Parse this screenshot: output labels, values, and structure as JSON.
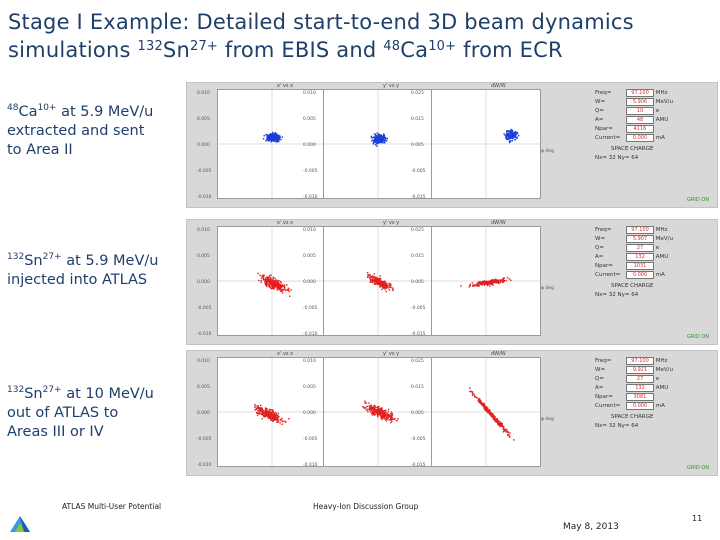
{
  "title": {
    "line1": "Stage I Example: Detailed start-to-end 3D beam dynamics",
    "line2_a": "simulations ",
    "sn_mass": "132",
    "sn_sym": "Sn",
    "sn_charge": "27+",
    "mid": " from EBIS and ",
    "ca_mass": "48",
    "ca_sym": "Ca",
    "ca_charge": "10+",
    "end": " from ECR"
  },
  "labels": [
    {
      "mass": "48",
      "sym": "Ca",
      "charge": "10+",
      "rest": " at 5.9 MeV/u",
      "line2": "extracted and sent",
      "line3": "to Area II"
    },
    {
      "mass": "132",
      "sym": "Sn",
      "charge": "27+",
      "rest": " at 5.9 MeV/u",
      "line2": "injected into ATLAS",
      "line3": ""
    },
    {
      "mass": "132",
      "sym": "Sn",
      "charge": "27+",
      "rest": " at 10 MeV/u",
      "line2": "out of ATLAS to",
      "line3": "Areas III or IV"
    }
  ],
  "panels": [
    {
      "color": "#1a3fd8",
      "fields": [
        {
          "k": "Freq=",
          "v": "97.100",
          "u": "MHz"
        },
        {
          "k": "W=",
          "v": "5.906",
          "u": "MeV/u"
        },
        {
          "k": "Q=",
          "v": "10",
          "u": "e"
        },
        {
          "k": "A=",
          "v": "48",
          "u": "AMU"
        },
        {
          "k": "Npar=",
          "v": "4116",
          "u": ""
        },
        {
          "k": "Current=",
          "v": "0.000",
          "u": "mA"
        }
      ],
      "space": "SPACE CHARGE",
      "nx": "Nx= 32   Ny= 64",
      "grid": "GRID ON",
      "plot_labels": [
        "x' vs x",
        "y' vs y",
        "dW/W"
      ],
      "yticks": [
        "0.010",
        "0.005",
        "0.000",
        "-0.005",
        "-0.010"
      ],
      "yticks3": [
        "0.025",
        "0.015",
        "0.005",
        "-0.005",
        "-0.015"
      ],
      "phase": "φ deg"
    },
    {
      "color": "#e02020",
      "fields": [
        {
          "k": "Freq=",
          "v": "97.100",
          "u": "MHz"
        },
        {
          "k": "W=",
          "v": "5.907",
          "u": "MeV/u"
        },
        {
          "k": "Q=",
          "v": "27",
          "u": "e"
        },
        {
          "k": "A=",
          "v": "132",
          "u": "AMU"
        },
        {
          "k": "Npar=",
          "v": "1031",
          "u": ""
        },
        {
          "k": "Current=",
          "v": "0.000",
          "u": "mA"
        }
      ],
      "space": "SPACE CHARGE",
      "nx": "Nx= 32   Ny= 64",
      "grid": "GRID ON",
      "plot_labels": [
        "x' vs x",
        "y' vs y",
        "dW/W"
      ],
      "yticks": [
        "0.010",
        "0.005",
        "0.000",
        "-0.005",
        "-0.010"
      ],
      "yticks3": [
        "0.025",
        "0.015",
        "0.005",
        "-0.005",
        "-0.015"
      ],
      "phase": "φ deg"
    },
    {
      "color": "#e02020",
      "fields": [
        {
          "k": "Freq=",
          "v": "97.100",
          "u": "MHz"
        },
        {
          "k": "W=",
          "v": "9.921",
          "u": "MeV/u"
        },
        {
          "k": "Q=",
          "v": "27",
          "u": "e"
        },
        {
          "k": "A=",
          "v": "132",
          "u": "AMU"
        },
        {
          "k": "Npar=",
          "v": "3081",
          "u": ""
        },
        {
          "k": "Current=",
          "v": "0.000",
          "u": "mA"
        }
      ],
      "space": "SPACE CHARGE",
      "nx": "Nx= 32   Ny= 64",
      "grid": "GRID ON",
      "plot_labels": [
        "x' vs x",
        "y' vs y",
        "dW/W"
      ],
      "yticks": [
        "0.010",
        "0.005",
        "0.000",
        "-0.005",
        "-0.010"
      ],
      "yticks3": [
        "0.025",
        "0.015",
        "0.005",
        "-0.005",
        "-0.015"
      ],
      "phase": "φ deg"
    }
  ],
  "footer": {
    "left": "ATLAS Multi-User Potential",
    "center": "Heavy-Ion Discussion Group",
    "date": "May 8, 2013",
    "page": "11"
  },
  "logo_icon": "argonne-logo-icon"
}
